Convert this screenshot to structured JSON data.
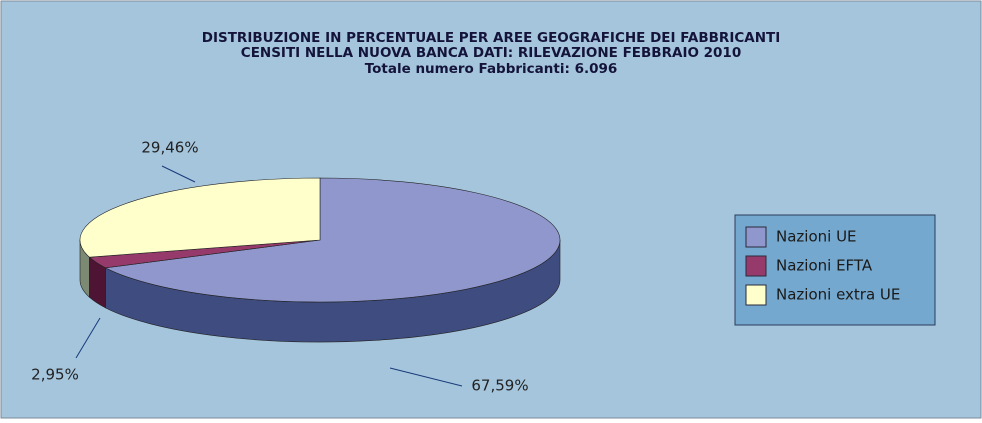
{
  "chart_data": {
    "type": "pie3d",
    "title": [
      "DISTRIBUZIONE IN PERCENTUALE PER AREE GEOGRAFICHE DEI FABBRICANTI",
      "CENSITI NELLA NUOVA BANCA DATI: RILEVAZIONE FEBBRAIO 2010"
    ],
    "subtitle": "Totale numero Fabbricanti: 6.096",
    "categories": [
      "Nazioni UE",
      "Nazioni EFTA",
      "Nazioni extra UE"
    ],
    "values": [
      67.59,
      2.95,
      29.46
    ],
    "value_labels": [
      "67,59%",
      "2,95%",
      "29,46%"
    ],
    "colors": [
      "#8f97cd",
      "#963a6c",
      "#ffffcc"
    ],
    "side_colors": [
      "#3f4c80",
      "#4e1434",
      "#7c8a74"
    ],
    "legend": "right"
  }
}
